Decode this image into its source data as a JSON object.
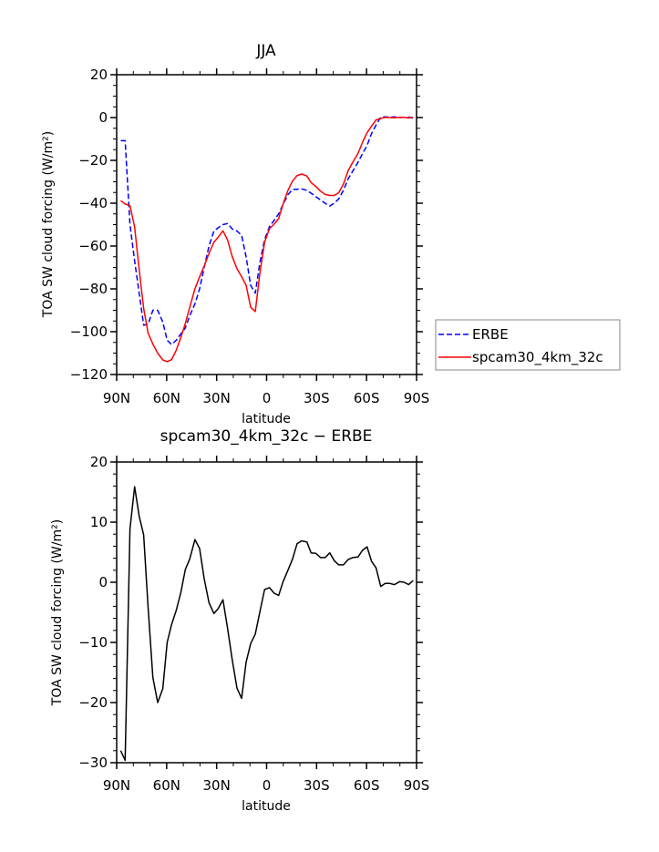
{
  "colors": {
    "erbe": "#0000ff",
    "model": "#ff0000",
    "diff": "#000000"
  },
  "chart_data": [
    {
      "type": "line",
      "title": "JJA",
      "xlabel": "latitude",
      "ylabel": "TOA SW cloud forcing (W/m²)",
      "xlim": [
        90,
        -90
      ],
      "ylim": [
        -120,
        20
      ],
      "yticks": [
        20,
        0,
        -20,
        -40,
        -60,
        -80,
        -100,
        -120
      ],
      "ytick_labels": [
        "20",
        "0",
        "−20",
        "−40",
        "−60",
        "−80",
        "−100",
        "−120"
      ],
      "xticks": [
        90,
        60,
        30,
        0,
        -30,
        -60,
        -90
      ],
      "xtick_labels": [
        "90N",
        "60N",
        "30N",
        "0",
        "30S",
        "60S",
        "90S"
      ],
      "legend": {
        "placement": "right-outside",
        "entries": [
          "ERBE",
          "spcam30_4km_32c"
        ]
      },
      "x": [
        87.6,
        84.9,
        82.0,
        79.2,
        76.5,
        73.8,
        71.1,
        68.3,
        65.4,
        62.3,
        59.7,
        57.0,
        54.3,
        51.5,
        48.8,
        46.1,
        43.0,
        40.2,
        37.5,
        34.6,
        31.6,
        29.1,
        26.2,
        23.4,
        20.7,
        17.8,
        15.0,
        12.3,
        9.6,
        6.8,
        4.1,
        1.2,
        -1.7,
        -4.5,
        -7.2,
        -9.9,
        -12.8,
        -15.6,
        -18.3,
        -21.0,
        -24.2,
        -26.7,
        -29.6,
        -32.4,
        -35.1,
        -37.9,
        -40.6,
        -43.3,
        -46.1,
        -49.0,
        -51.7,
        -54.8,
        -57.5,
        -60.3,
        -63.0,
        -65.7,
        -68.5,
        -71.2,
        -74.0,
        -76.7,
        -79.8,
        -82.5,
        -85.3,
        -87.9
      ],
      "series": [
        {
          "name": "ERBE",
          "style": "dashed",
          "values": [
            -10.8,
            -10.8,
            -50,
            -67,
            -82,
            -97,
            -96.5,
            -90,
            -90,
            -95.5,
            -104,
            -106,
            -104,
            -101,
            -98.3,
            -92.5,
            -87,
            -80,
            -70,
            -60,
            -53,
            -51.5,
            -50,
            -49.5,
            -52,
            -53,
            -55,
            -65,
            -78.4,
            -82,
            -68,
            -57,
            -51,
            -48,
            -45,
            -40.5,
            -36,
            -33.5,
            -33.5,
            -33.3,
            -34,
            -35.3,
            -37,
            -38.5,
            -40,
            -41.3,
            -40,
            -38,
            -34,
            -28.5,
            -25,
            -21,
            -17,
            -13,
            -7.5,
            -3.5,
            0.2,
            0.3,
            0.2,
            0.3,
            0,
            0.1,
            0.2,
            -0.2
          ]
        },
        {
          "name": "spcam30_4km_32c",
          "style": "solid",
          "values": [
            -38.8,
            -40.4,
            -41.1,
            -51.1,
            -71,
            -89.1,
            -100.7,
            -105.8,
            -110,
            -113.2,
            -114,
            -113,
            -108.7,
            -102.7,
            -96.2,
            -88.6,
            -79.9,
            -74.4,
            -69.4,
            -63.4,
            -58.2,
            -55.9,
            -52.9,
            -57.2,
            -64.8,
            -70.6,
            -74.3,
            -78.3,
            -88.6,
            -90.6,
            -73,
            -58.2,
            -51.9,
            -49.8,
            -47.2,
            -40.4,
            -34,
            -29.6,
            -27.1,
            -26.4,
            -27.3,
            -30.4,
            -32.2,
            -34.4,
            -35.9,
            -36.4,
            -36.4,
            -35.1,
            -31.1,
            -24.7,
            -20.9,
            -16.8,
            -11.7,
            -7.1,
            -4,
            -1.1,
            -0.5,
            0.1,
            0,
            -0.1,
            0.1,
            0.1,
            -0.2,
            0.1
          ]
        }
      ]
    },
    {
      "type": "line",
      "title": "spcam30_4km_32c − ERBE",
      "xlabel": "latitude",
      "ylabel": "TOA SW cloud forcing (W/m²)",
      "xlim": [
        90,
        -90
      ],
      "ylim": [
        -30,
        20
      ],
      "yticks": [
        20,
        10,
        0,
        -10,
        -20,
        -30
      ],
      "ytick_labels": [
        "20",
        "10",
        "0",
        "−10",
        "−20",
        "−30"
      ],
      "xticks": [
        90,
        60,
        30,
        0,
        -30,
        -60,
        -90
      ],
      "xtick_labels": [
        "90N",
        "60N",
        "30N",
        "0",
        "30S",
        "60S",
        "90S"
      ],
      "x": [
        87.6,
        84.9,
        82.0,
        79.2,
        76.5,
        73.8,
        71.1,
        68.3,
        65.4,
        62.3,
        59.7,
        57.0,
        54.3,
        51.5,
        48.8,
        46.1,
        43.0,
        40.2,
        37.5,
        34.6,
        31.6,
        29.1,
        26.2,
        23.4,
        20.7,
        17.8,
        15.0,
        12.3,
        9.6,
        6.8,
        4.1,
        1.2,
        -1.7,
        -4.5,
        -7.2,
        -9.9,
        -12.8,
        -15.6,
        -18.3,
        -21.0,
        -24.2,
        -26.7,
        -29.6,
        -32.4,
        -35.1,
        -37.9,
        -40.6,
        -43.3,
        -46.1,
        -49.0,
        -51.7,
        -54.8,
        -57.5,
        -60.3,
        -63.0,
        -65.7,
        -68.5,
        -71.2,
        -74.0,
        -76.7,
        -79.8,
        -82.5,
        -85.3,
        -87.9
      ],
      "series": [
        {
          "name": "spcam30_4km_32c - ERBE",
          "style": "solid",
          "values": [
            -28.0,
            -29.6,
            8.9,
            15.9,
            11.0,
            7.9,
            -4.2,
            -15.8,
            -20.0,
            -17.7,
            -10,
            -7,
            -4.7,
            -1.7,
            2.1,
            3.9,
            7.1,
            5.6,
            0.6,
            -3.4,
            -5.2,
            -4.4,
            -2.9,
            -7.7,
            -12.8,
            -17.6,
            -19.3,
            -13.3,
            -10.2,
            -8.6,
            -5,
            -1.2,
            -0.9,
            -1.8,
            -2.2,
            0.1,
            2,
            3.9,
            6.4,
            6.9,
            6.7,
            4.9,
            4.8,
            4.1,
            4.1,
            4.9,
            3.6,
            2.9,
            2.9,
            3.8,
            4.1,
            4.2,
            5.3,
            5.9,
            3.5,
            2.4,
            -0.7,
            -0.2,
            -0.2,
            -0.4,
            0.1,
            0,
            -0.4,
            0.3
          ]
        }
      ]
    }
  ]
}
